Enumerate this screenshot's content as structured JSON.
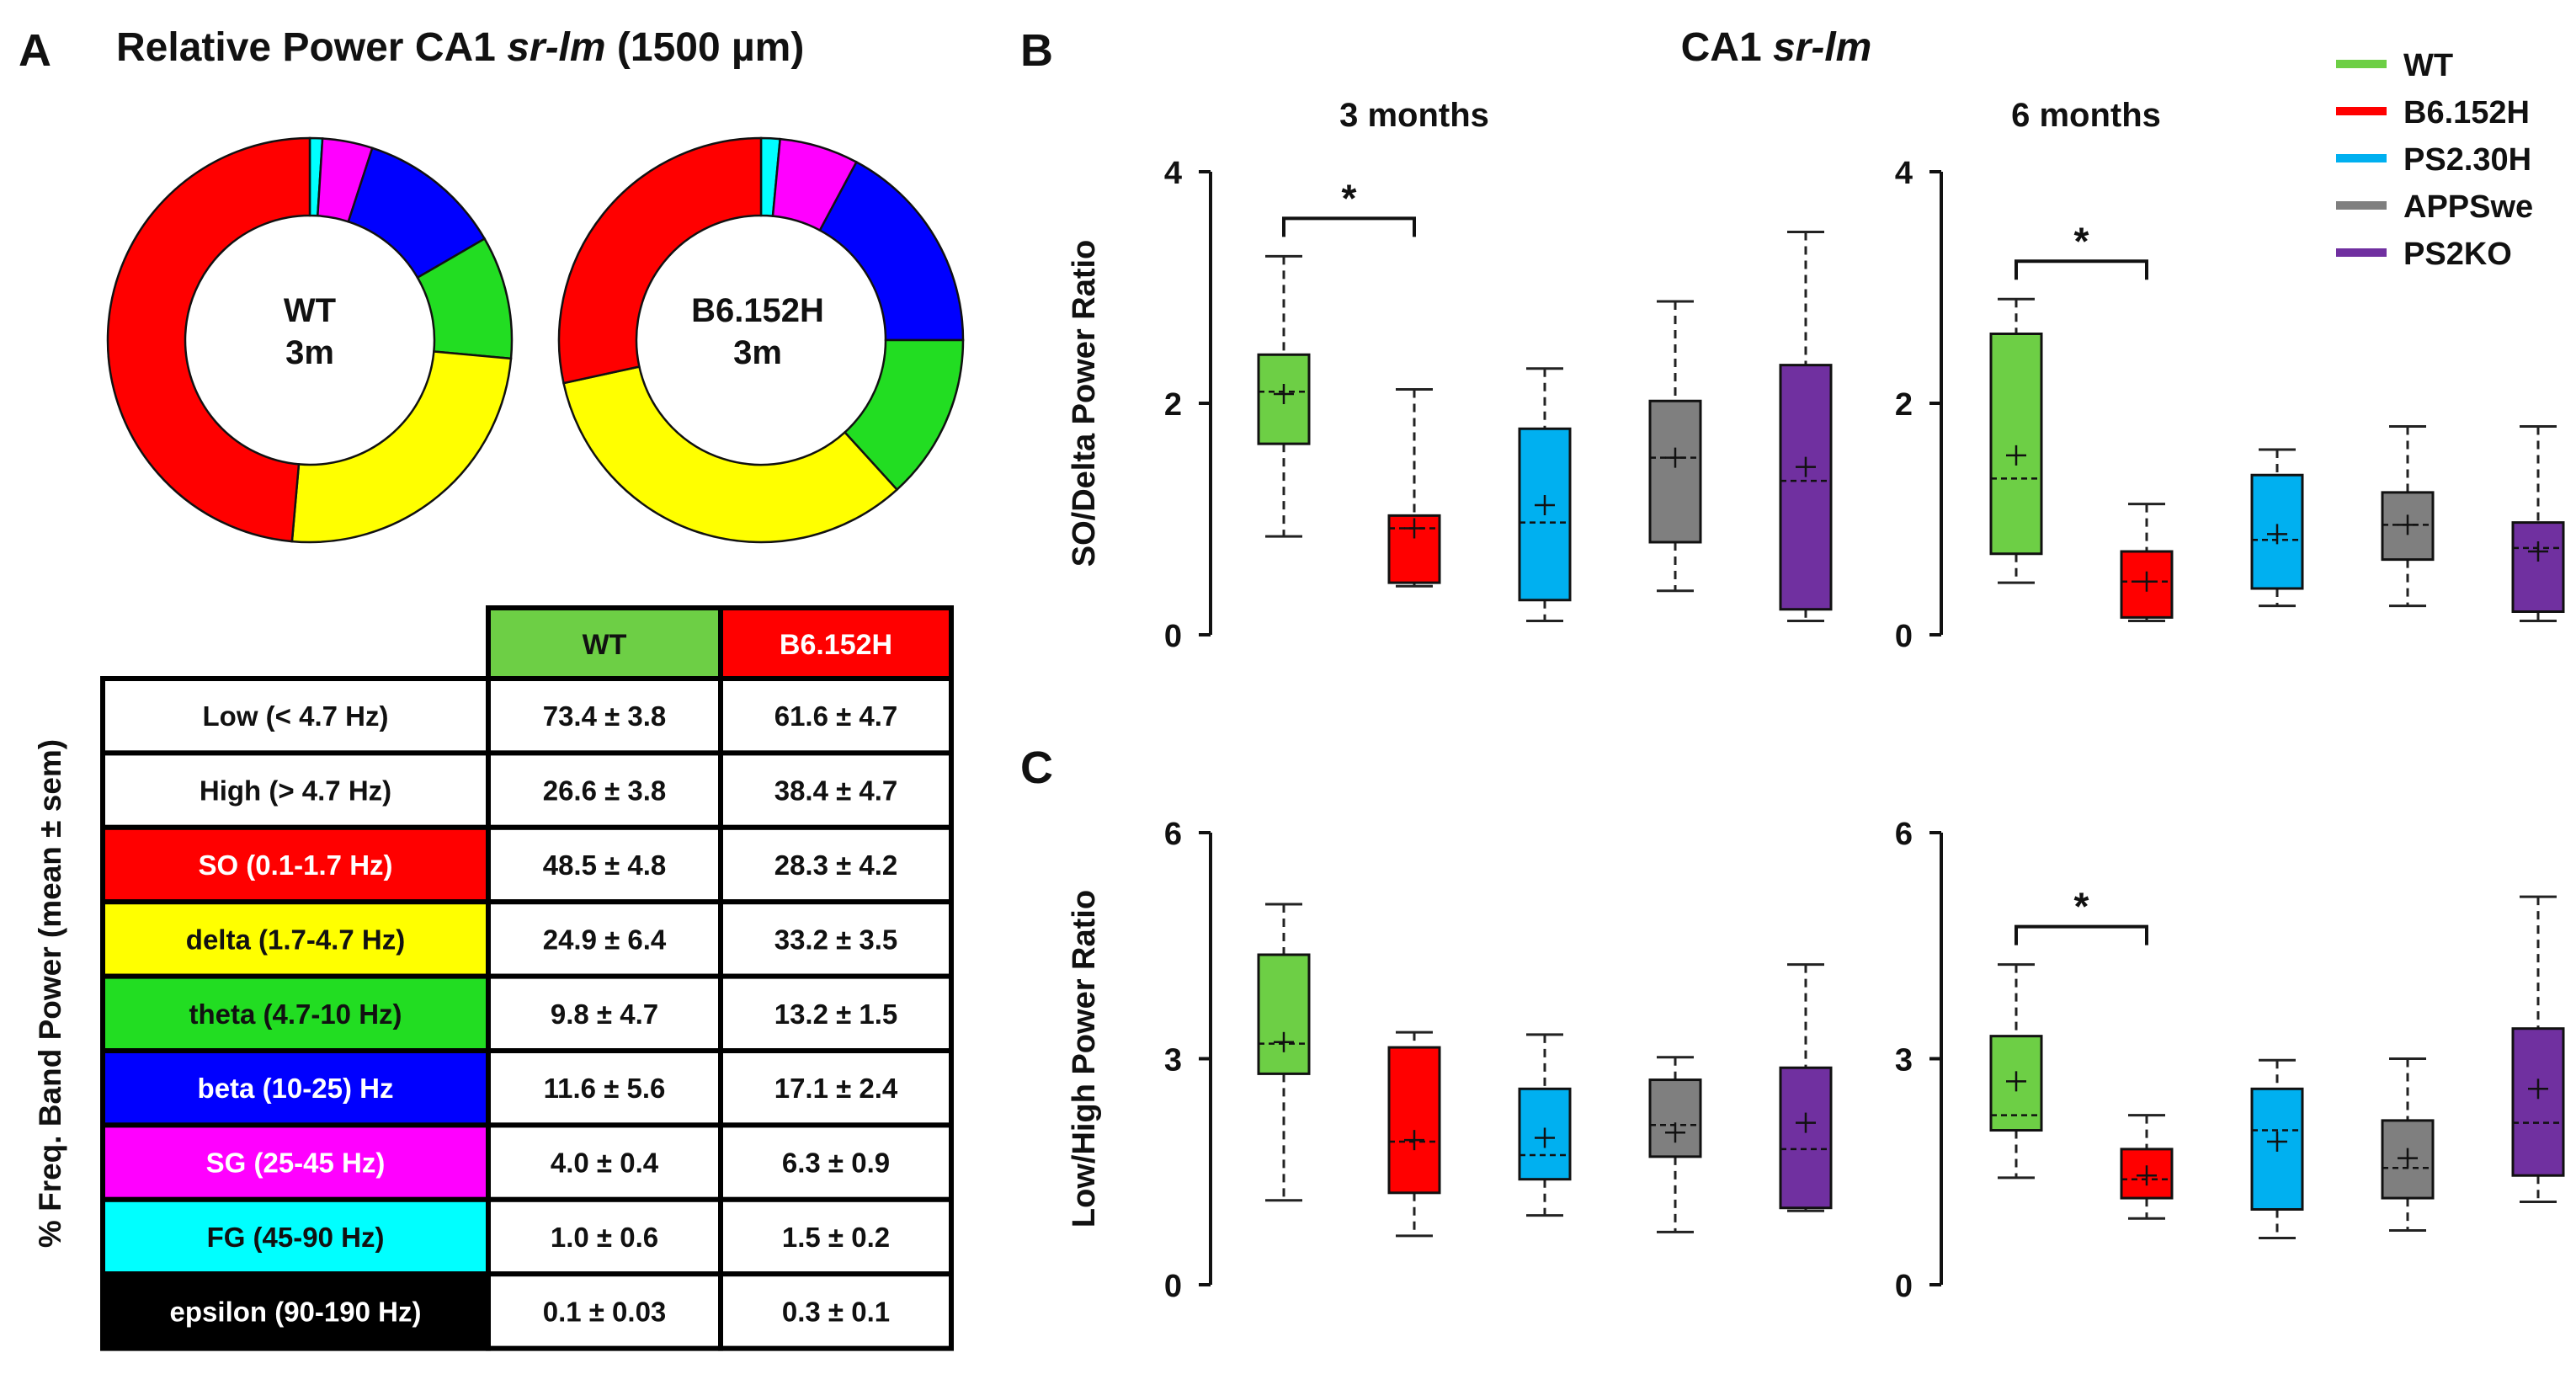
{
  "panels": {
    "A": {
      "letter": "A",
      "title_prefix": "Relative Power CA1 ",
      "title_italic": "sr-lm",
      "title_suffix": " (1500 µm)",
      "donuts": [
        {
          "label_line1": "WT",
          "label_line2": "3m"
        },
        {
          "label_line1": "B6.152H",
          "label_line2": "3m"
        }
      ],
      "table_side_label": "% Freq. Band Power (mean ± sem)"
    },
    "B": {
      "letter": "B",
      "title_prefix": "CA1 ",
      "title_italic": "sr-lm"
    },
    "C": {
      "letter": "C"
    }
  },
  "colors": {
    "WT": "#6dcf45",
    "B6.152H": "#ff0000",
    "PS2.30H": "#00b0f0",
    "APPSwe": "#7f7f7f",
    "PS2KO": "#7030a0",
    "SO": "#ff0000",
    "delta": "#ffff00",
    "theta": "#22dd22",
    "beta": "#0000ff",
    "SG": "#ff00ff",
    "FG": "#00ffff",
    "epsilon": "#000000"
  },
  "legend": [
    "WT",
    "B6.152H",
    "PS2.30H",
    "APPSwe",
    "PS2KO"
  ],
  "table": {
    "headers": [
      "WT",
      "B6.152H"
    ],
    "rows": [
      {
        "band": "Low (< 4.7 Hz)",
        "color": "#ffffff",
        "text_color": "#111111",
        "wt": "73.4 ± 3.8",
        "b6": "61.6 ± 4.7"
      },
      {
        "band": "High (> 4.7 Hz)",
        "color": "#ffffff",
        "text_color": "#111111",
        "wt": "26.6 ± 3.8",
        "b6": "38.4 ± 4.7"
      },
      {
        "band": "SO (0.1-1.7 Hz)",
        "color": "#ff0000",
        "text_color": "#ffffff",
        "wt": "48.5 ± 4.8",
        "b6": "28.3 ± 4.2"
      },
      {
        "band": "delta (1.7-4.7 Hz)",
        "color": "#ffff00",
        "text_color": "#111111",
        "wt": "24.9 ± 6.4",
        "b6": "33.2 ± 3.5"
      },
      {
        "band": "theta (4.7-10 Hz)",
        "color": "#22dd22",
        "text_color": "#111111",
        "wt": "9.8 ± 4.7",
        "b6": "13.2 ± 1.5"
      },
      {
        "band": "beta (10-25) Hz",
        "color": "#0000ff",
        "text_color": "#ffffff",
        "wt": "11.6 ± 5.6",
        "b6": "17.1 ± 2.4"
      },
      {
        "band": "SG (25-45 Hz)",
        "color": "#ff00ff",
        "text_color": "#ffffff",
        "wt": "4.0 ± 0.4",
        "b6": "6.3 ± 0.9"
      },
      {
        "band": "FG (45-90 Hz)",
        "color": "#00ffff",
        "text_color": "#111111",
        "wt": "1.0 ± 0.6",
        "b6": "1.5 ± 0.2"
      },
      {
        "band": "epsilon (90-190 Hz)",
        "color": "#000000",
        "text_color": "#ffffff",
        "wt": "0.1 ± 0.03",
        "b6": "0.3 ± 0.1"
      }
    ]
  },
  "chart_data": [
    {
      "id": "donut_wt",
      "type": "pie",
      "title": "WT 3m",
      "start_angle_deg": 0,
      "slices": [
        {
          "name": "FG",
          "value": 1.0
        },
        {
          "name": "SG",
          "value": 4.0
        },
        {
          "name": "beta",
          "value": 11.6
        },
        {
          "name": "theta",
          "value": 9.8
        },
        {
          "name": "delta",
          "value": 24.9
        },
        {
          "name": "SO",
          "value": 48.5
        }
      ]
    },
    {
      "id": "donut_b6",
      "type": "pie",
      "title": "B6.152H 3m",
      "start_angle_deg": 0,
      "slices": [
        {
          "name": "FG",
          "value": 1.5
        },
        {
          "name": "SG",
          "value": 6.3
        },
        {
          "name": "beta",
          "value": 17.1
        },
        {
          "name": "theta",
          "value": 13.2
        },
        {
          "name": "delta",
          "value": 33.2
        },
        {
          "name": "SO",
          "value": 28.3
        }
      ]
    },
    {
      "id": "B_3m",
      "type": "box",
      "title": "3 months",
      "ylabel": "SO/Delta Power Ratio",
      "ylim": [
        0,
        4
      ],
      "yticks": [
        0,
        2,
        4
      ],
      "groups": [
        {
          "name": "WT",
          "min": 0.85,
          "q1": 1.65,
          "median": 2.1,
          "q3": 2.42,
          "max": 3.27,
          "mean": 2.08
        },
        {
          "name": "B6.152H",
          "min": 0.42,
          "q1": 0.45,
          "median": 0.92,
          "q3": 1.03,
          "max": 2.12,
          "mean": 0.92
        },
        {
          "name": "PS2.30H",
          "min": 0.12,
          "q1": 0.3,
          "median": 0.97,
          "q3": 1.78,
          "max": 2.3,
          "mean": 1.12
        },
        {
          "name": "APPSwe",
          "min": 0.38,
          "q1": 0.8,
          "median": 1.53,
          "q3": 2.02,
          "max": 2.88,
          "mean": 1.53
        },
        {
          "name": "PS2KO",
          "min": 0.12,
          "q1": 0.22,
          "median": 1.33,
          "q3": 2.33,
          "max": 3.48,
          "mean": 1.45
        }
      ],
      "significance": [
        {
          "from": "WT",
          "to": "B6.152H",
          "label": "*"
        }
      ]
    },
    {
      "id": "B_6m",
      "type": "box",
      "title": "6 months",
      "ylabel": "SO/Delta Power Ratio",
      "ylim": [
        0,
        4
      ],
      "yticks": [
        0,
        2,
        4
      ],
      "groups": [
        {
          "name": "WT",
          "min": 0.45,
          "q1": 0.7,
          "median": 1.35,
          "q3": 2.6,
          "max": 2.9,
          "mean": 1.55
        },
        {
          "name": "B6.152H",
          "min": 0.12,
          "q1": 0.15,
          "median": 0.46,
          "q3": 0.72,
          "max": 1.13,
          "mean": 0.46
        },
        {
          "name": "PS2.30H",
          "min": 0.25,
          "q1": 0.4,
          "median": 0.82,
          "q3": 1.38,
          "max": 1.6,
          "mean": 0.87
        },
        {
          "name": "APPSwe",
          "min": 0.25,
          "q1": 0.65,
          "median": 0.95,
          "q3": 1.23,
          "max": 1.8,
          "mean": 0.95
        },
        {
          "name": "PS2KO",
          "min": 0.12,
          "q1": 0.2,
          "median": 0.75,
          "q3": 0.97,
          "max": 1.8,
          "mean": 0.72
        }
      ],
      "significance": [
        {
          "from": "WT",
          "to": "B6.152H",
          "label": "*"
        }
      ]
    },
    {
      "id": "C_3m",
      "type": "box",
      "title": "",
      "ylabel": "Low/High Power Ratio",
      "ylim": [
        0,
        6
      ],
      "yticks": [
        0,
        3,
        6
      ],
      "groups": [
        {
          "name": "WT",
          "min": 1.12,
          "q1": 2.8,
          "median": 3.2,
          "q3": 4.38,
          "max": 5.05,
          "mean": 3.22
        },
        {
          "name": "B6.152H",
          "min": 0.65,
          "q1": 1.22,
          "median": 1.9,
          "q3": 3.15,
          "max": 3.35,
          "mean": 1.92
        },
        {
          "name": "PS2.30H",
          "min": 0.92,
          "q1": 1.4,
          "median": 1.72,
          "q3": 2.6,
          "max": 3.32,
          "mean": 1.95
        },
        {
          "name": "APPSwe",
          "min": 0.7,
          "q1": 1.7,
          "median": 2.12,
          "q3": 2.72,
          "max": 3.02,
          "mean": 2.02
        },
        {
          "name": "PS2KO",
          "min": 0.98,
          "q1": 1.02,
          "median": 1.8,
          "q3": 2.88,
          "max": 4.25,
          "mean": 2.15
        }
      ],
      "significance": []
    },
    {
      "id": "C_6m",
      "type": "box",
      "title": "",
      "ylabel": "Low/High Power Ratio",
      "ylim": [
        0,
        6
      ],
      "yticks": [
        0,
        3,
        6
      ],
      "groups": [
        {
          "name": "WT",
          "min": 1.42,
          "q1": 2.05,
          "median": 2.25,
          "q3": 3.3,
          "max": 4.25,
          "mean": 2.7
        },
        {
          "name": "B6.152H",
          "min": 0.88,
          "q1": 1.15,
          "median": 1.4,
          "q3": 1.8,
          "max": 2.25,
          "mean": 1.45
        },
        {
          "name": "PS2.30H",
          "min": 0.62,
          "q1": 1.0,
          "median": 2.05,
          "q3": 2.6,
          "max": 2.98,
          "mean": 1.9
        },
        {
          "name": "APPSwe",
          "min": 0.72,
          "q1": 1.15,
          "median": 1.55,
          "q3": 2.18,
          "max": 3.0,
          "mean": 1.68
        },
        {
          "name": "PS2KO",
          "min": 1.1,
          "q1": 1.45,
          "median": 2.15,
          "q3": 3.4,
          "max": 5.15,
          "mean": 2.6
        }
      ],
      "significance": [
        {
          "from": "WT",
          "to": "B6.152H",
          "label": "*"
        }
      ]
    }
  ]
}
